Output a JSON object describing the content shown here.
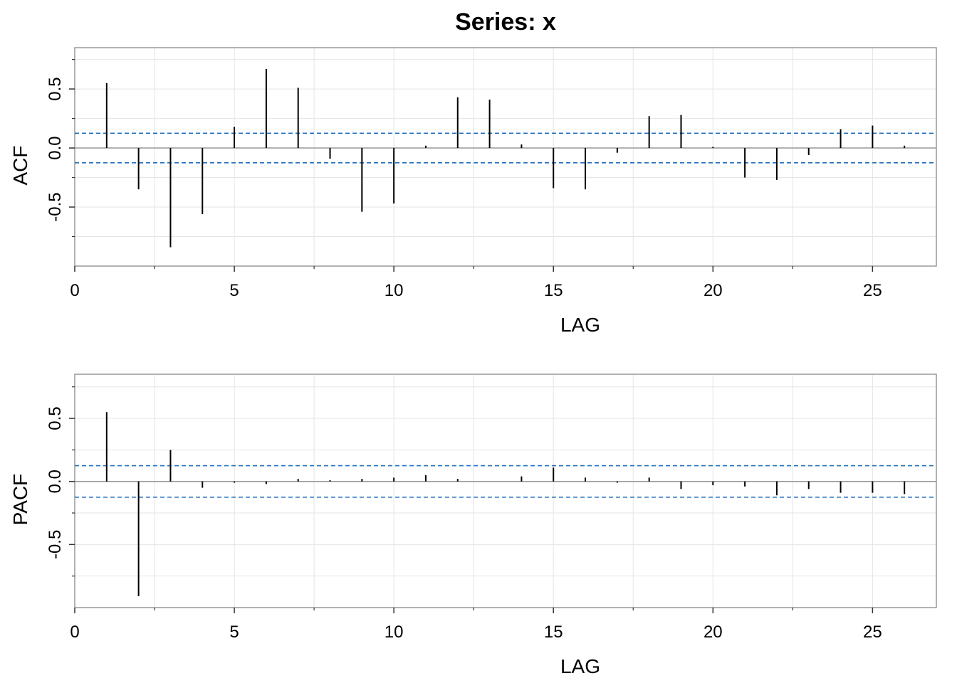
{
  "title": "Series:  x",
  "colors": {
    "ci_line": "#1f6fbf",
    "frame": "#999999",
    "grid": "#e5e5e5",
    "spike": "#000000",
    "background": "#ffffff"
  },
  "chart_data": [
    {
      "type": "bar",
      "style": "lollipop-spikes",
      "title": "",
      "xlabel": "LAG",
      "ylabel": "ACF",
      "xlim": [
        0,
        27
      ],
      "ylim": [
        -1.0,
        0.85
      ],
      "xticks": [
        0,
        5,
        10,
        15,
        20,
        25
      ],
      "xtick_labels": [
        "0",
        "5",
        "10",
        "15",
        "20",
        "25"
      ],
      "yticks": [
        -0.5,
        0.0,
        0.5
      ],
      "ytick_labels": [
        "-0.5",
        "0.0",
        "0.5"
      ],
      "grid": true,
      "confidence_bound": 0.125,
      "x": [
        1,
        2,
        3,
        4,
        5,
        6,
        7,
        8,
        9,
        10,
        11,
        12,
        13,
        14,
        15,
        16,
        17,
        18,
        19,
        20,
        21,
        22,
        23,
        24,
        25,
        26
      ],
      "values": [
        0.55,
        -0.35,
        -0.84,
        -0.56,
        0.18,
        0.67,
        0.51,
        -0.09,
        -0.54,
        -0.47,
        0.02,
        0.43,
        0.41,
        0.03,
        -0.34,
        -0.35,
        -0.04,
        0.27,
        0.28,
        0.01,
        -0.25,
        -0.27,
        -0.06,
        0.16,
        0.19,
        0.02
      ]
    },
    {
      "type": "bar",
      "style": "lollipop-spikes",
      "title": "",
      "xlabel": "LAG",
      "ylabel": "PACF",
      "xlim": [
        0,
        27
      ],
      "ylim": [
        -1.0,
        0.85
      ],
      "xticks": [
        0,
        5,
        10,
        15,
        20,
        25
      ],
      "xtick_labels": [
        "0",
        "5",
        "10",
        "15",
        "20",
        "25"
      ],
      "yticks": [
        -0.5,
        0.0,
        0.5
      ],
      "ytick_labels": [
        "-0.5",
        "0.0",
        "0.5"
      ],
      "grid": true,
      "confidence_bound": 0.125,
      "x": [
        1,
        2,
        3,
        4,
        5,
        6,
        7,
        8,
        9,
        10,
        11,
        12,
        13,
        14,
        15,
        16,
        17,
        18,
        19,
        20,
        21,
        22,
        23,
        24,
        25,
        26
      ],
      "values": [
        0.55,
        -0.91,
        0.25,
        -0.05,
        -0.01,
        -0.02,
        0.02,
        0.01,
        0.02,
        0.03,
        0.05,
        0.02,
        0.0,
        0.04,
        0.11,
        0.03,
        -0.01,
        0.03,
        -0.06,
        -0.03,
        -0.04,
        -0.11,
        -0.06,
        -0.09,
        -0.09,
        -0.1
      ]
    }
  ]
}
